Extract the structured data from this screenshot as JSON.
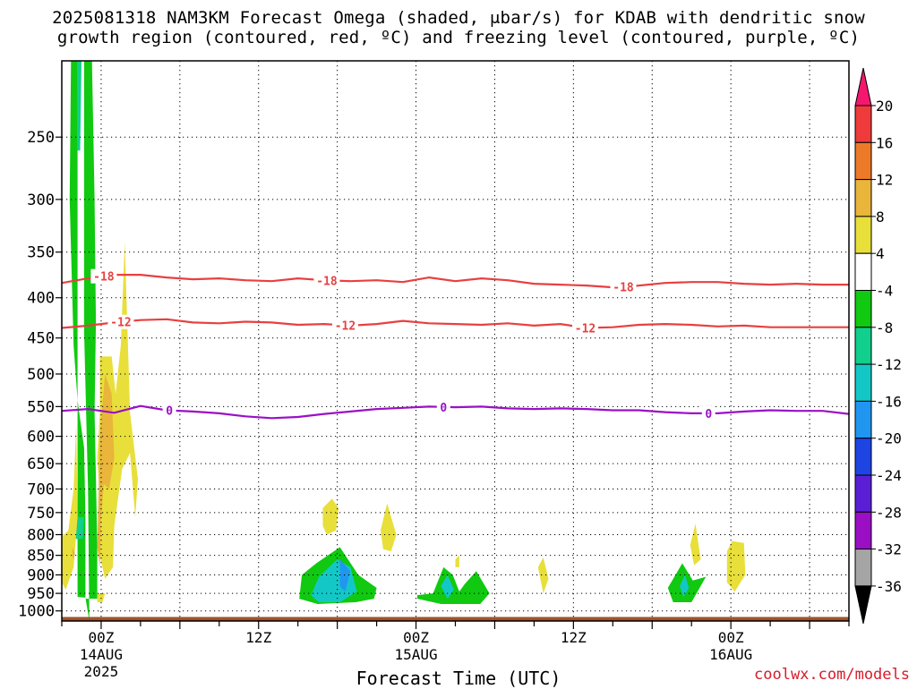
{
  "title_line1": "2025081318 NAM3KM Forecast Omega (shaded, μbar/s) for KDAB with dendritic snow",
  "title_line2": "growth region (contoured, red, ºC) and freezing level (contoured, purple, ºC)",
  "credit": "coolwx.com/models",
  "chart_data": {
    "type": "heatmap",
    "title": "2025081318 NAM3KM Forecast Omega (shaded, μbar/s) for KDAB with dendritic snow growth region (contoured, red, ºC) and freezing level (contoured, purple, ºC)",
    "xlabel": "Forecast Time (UTC)",
    "ylabel": "",
    "x_units": "hours since 2025-08-13 18Z",
    "xlim": [
      3,
      63
    ],
    "ylim": [
      1030,
      200
    ],
    "y_scale": "log (pressure, hPa)",
    "grid": true,
    "y_ticks": [
      250,
      300,
      350,
      400,
      450,
      500,
      550,
      600,
      650,
      700,
      750,
      800,
      850,
      900,
      950,
      1000
    ],
    "x_ticks": [
      {
        "x": 6,
        "label": "00Z",
        "sub1": "14AUG",
        "sub2": "2025"
      },
      {
        "x": 18,
        "label": "12Z",
        "sub1": "",
        "sub2": ""
      },
      {
        "x": 30,
        "label": "00Z",
        "sub1": "15AUG",
        "sub2": ""
      },
      {
        "x": 42,
        "label": "12Z",
        "sub1": "",
        "sub2": ""
      },
      {
        "x": 54,
        "label": "00Z",
        "sub1": "16AUG",
        "sub2": ""
      }
    ],
    "colorbar": {
      "labels": [
        "20",
        "16",
        "12",
        "8",
        "4",
        "-4",
        "-8",
        "-12",
        "-16",
        "-20",
        "-24",
        "-28",
        "-32",
        "-36"
      ],
      "colors": [
        "#f5176e",
        "#ef3b3b",
        "#ec7a28",
        "#e9b53a",
        "#e8df3a",
        "#ffffff",
        "#10c910",
        "#11cf8c",
        "#14c7c7",
        "#2196f0",
        "#1f44e4",
        "#5a1fd4",
        "#9a0fc4",
        "#a5a5a5",
        "#000000"
      ]
    },
    "contours": [
      {
        "name": "-18",
        "color": "#e84040",
        "label_x": [
          6.2,
          23.2,
          45.8
        ],
        "x": [
          3,
          5,
          7,
          9,
          11,
          13,
          15,
          17,
          19,
          21,
          23,
          25,
          27,
          29,
          31,
          33,
          35,
          37,
          39,
          41,
          43,
          45,
          47,
          49,
          51,
          53,
          55,
          57,
          59,
          61,
          63
        ],
        "p": [
          383,
          378,
          374,
          374,
          377,
          379,
          378,
          380,
          381,
          378,
          380,
          381,
          380,
          382,
          377,
          381,
          378,
          380,
          384,
          385,
          386,
          388,
          386,
          383,
          382,
          382,
          384,
          385,
          384,
          385,
          385
        ]
      },
      {
        "name": "-12",
        "color": "#e84040",
        "label_x": [
          7.5,
          24.6,
          42.9
        ],
        "x": [
          3,
          5,
          7,
          9,
          11,
          13,
          15,
          17,
          19,
          21,
          23,
          25,
          27,
          29,
          31,
          33,
          35,
          37,
          39,
          41,
          43,
          45,
          47,
          49,
          51,
          53,
          55,
          57,
          59,
          61,
          63
        ],
        "p": [
          437,
          434,
          430,
          427,
          426,
          430,
          431,
          429,
          430,
          433,
          432,
          434,
          432,
          428,
          431,
          432,
          433,
          431,
          434,
          432,
          437,
          436,
          433,
          432,
          433,
          435,
          434,
          436,
          436,
          436,
          436
        ]
      },
      {
        "name": "0",
        "color": "#9a10c8",
        "label_x": [
          11.2,
          32.1,
          52.3
        ],
        "x": [
          3,
          5,
          7,
          9,
          11,
          13,
          15,
          17,
          19,
          21,
          23,
          25,
          27,
          29,
          31,
          33,
          35,
          37,
          39,
          41,
          43,
          45,
          47,
          49,
          51,
          53,
          55,
          57,
          59,
          61,
          63
        ],
        "p": [
          557,
          554,
          560,
          549,
          556,
          558,
          561,
          566,
          569,
          567,
          562,
          558,
          554,
          552,
          550,
          551,
          550,
          553,
          554,
          553,
          554,
          556,
          556,
          559,
          561,
          561,
          558,
          556,
          557,
          557,
          562
        ]
      }
    ],
    "regions": [
      {
        "name": "upward-motion-band-outer",
        "value": -8,
        "color": "#10c910",
        "pts": [
          [
            5.1,
            1030
          ],
          [
            5.0,
            700
          ],
          [
            4.7,
            440
          ],
          [
            4.7,
            200
          ],
          [
            5.3,
            200
          ],
          [
            5.5,
            300
          ],
          [
            5.6,
            430
          ],
          [
            5.5,
            560
          ],
          [
            5.7,
            820
          ],
          [
            5.7,
            965
          ],
          [
            4.8,
            965
          ],
          [
            4.8,
            760
          ],
          [
            4.7,
            620
          ],
          [
            4.2,
            540
          ],
          [
            3.9,
            460
          ],
          [
            3.6,
            300
          ],
          [
            3.7,
            200
          ],
          [
            4.2,
            200
          ],
          [
            4.2,
            960
          ],
          [
            4.8,
            962
          ]
        ]
      },
      {
        "name": "upward-motion-band-inner",
        "value": -12,
        "color": "#11cf8c",
        "pts": [
          [
            4.2,
            200
          ],
          [
            4.5,
            200
          ],
          [
            4.4,
            260
          ],
          [
            4.2,
            260
          ]
        ]
      },
      {
        "name": "upward-motion-band-lower",
        "value": -12,
        "color": "#11cf8c",
        "pts": [
          [
            4.05,
            760
          ],
          [
            4.7,
            760
          ],
          [
            4.6,
            810
          ],
          [
            4.05,
            810
          ]
        ]
      },
      {
        "name": "sinking-motion-west-edge",
        "value": 4,
        "color": "#e8df3a",
        "pts": [
          [
            3.0,
            805
          ],
          [
            3.5,
            790
          ],
          [
            3.9,
            700
          ],
          [
            4.1,
            580
          ],
          [
            4.2,
            760
          ],
          [
            3.9,
            880
          ],
          [
            3.3,
            940
          ],
          [
            3.0,
            920
          ]
        ]
      },
      {
        "name": "sinking-motion-west-core",
        "value": 8,
        "color": "#e9b53a",
        "pts": [
          [
            3.8,
            830
          ],
          [
            4.0,
            845
          ],
          [
            3.9,
            860
          ],
          [
            3.8,
            850
          ]
        ]
      },
      {
        "name": "sinking-motion-column",
        "value": 4,
        "color": "#e8df3a",
        "pts": [
          [
            5.9,
            475
          ],
          [
            6.8,
            475
          ],
          [
            7.1,
            530
          ],
          [
            7.5,
            460
          ],
          [
            7.8,
            340
          ],
          [
            8.2,
            560
          ],
          [
            8.8,
            680
          ],
          [
            8.6,
            760
          ],
          [
            8.2,
            630
          ],
          [
            7.6,
            660
          ],
          [
            7.0,
            780
          ],
          [
            6.9,
            880
          ],
          [
            6.3,
            910
          ],
          [
            5.9,
            850
          ],
          [
            6.0,
            760
          ],
          [
            5.7,
            640
          ],
          [
            5.9,
            560
          ]
        ]
      },
      {
        "name": "sinking-motion-column-core",
        "value": 8,
        "color": "#e9b53a",
        "pts": [
          [
            5.9,
            600
          ],
          [
            6.3,
            500
          ],
          [
            6.8,
            530
          ],
          [
            7.0,
            640
          ],
          [
            6.6,
            700
          ],
          [
            6.2,
            690
          ],
          [
            6.0,
            760
          ],
          [
            5.9,
            880
          ],
          [
            5.7,
            830
          ]
        ]
      },
      {
        "name": "sinking-motion-speck",
        "value": 4,
        "color": "#e8df3a",
        "pts": [
          [
            5.7,
            950
          ],
          [
            6.3,
            950
          ],
          [
            6.1,
            975
          ],
          [
            5.7,
            975
          ]
        ]
      },
      {
        "name": "upward-motion-cell-15aug",
        "value": -8,
        "color": "#10c910",
        "pts": [
          [
            21.1,
            965
          ],
          [
            21.3,
            900
          ],
          [
            22.4,
            870
          ],
          [
            24.2,
            830
          ],
          [
            25.6,
            900
          ],
          [
            27.0,
            935
          ],
          [
            26.8,
            965
          ],
          [
            25.4,
            975
          ],
          [
            22.5,
            980
          ]
        ]
      },
      {
        "name": "upward-motion-cell-15aug-core",
        "value": -16,
        "color": "#14c7c7",
        "pts": [
          [
            22.0,
            955
          ],
          [
            22.6,
            905
          ],
          [
            24.0,
            860
          ],
          [
            25.0,
            880
          ],
          [
            25.5,
            945
          ],
          [
            24.2,
            975
          ],
          [
            22.6,
            975
          ]
        ]
      },
      {
        "name": "upward-motion-cell-15aug-peak",
        "value": -20,
        "color": "#2196f0",
        "pts": [
          [
            24.2,
            860
          ],
          [
            25.0,
            890
          ],
          [
            24.6,
            945
          ],
          [
            24.2,
            930
          ]
        ]
      },
      {
        "name": "upward-motion-pair",
        "value": -8,
        "color": "#10c910",
        "pts": [
          [
            30.1,
            955
          ],
          [
            31.3,
            950
          ],
          [
            32.1,
            880
          ],
          [
            32.8,
            900
          ],
          [
            33.3,
            945
          ],
          [
            33.7,
            925
          ],
          [
            34.6,
            890
          ],
          [
            35.6,
            950
          ],
          [
            34.9,
            980
          ],
          [
            31.9,
            980
          ],
          [
            30.1,
            965
          ]
        ]
      },
      {
        "name": "upward-motion-pair-core",
        "value": -16,
        "color": "#14c7c7",
        "pts": [
          [
            31.9,
            930
          ],
          [
            32.4,
            900
          ],
          [
            32.9,
            940
          ],
          [
            32.4,
            965
          ]
        ]
      },
      {
        "name": "sinking-motion-15aug-a",
        "value": 4,
        "color": "#e8df3a",
        "pts": [
          [
            22.9,
            740
          ],
          [
            23.6,
            720
          ],
          [
            24.1,
            740
          ],
          [
            23.9,
            790
          ],
          [
            23.2,
            800
          ],
          [
            22.9,
            780
          ]
        ]
      },
      {
        "name": "sinking-motion-15aug-b",
        "value": 4,
        "color": "#e8df3a",
        "pts": [
          [
            27.3,
            790
          ],
          [
            27.8,
            730
          ],
          [
            28.5,
            800
          ],
          [
            28.1,
            840
          ],
          [
            27.5,
            835
          ]
        ]
      },
      {
        "name": "sinking-motion-15aug-c",
        "value": 4,
        "color": "#e8df3a",
        "pts": [
          [
            33.0,
            860
          ],
          [
            33.3,
            850
          ],
          [
            33.3,
            880
          ],
          [
            33.0,
            880
          ]
        ]
      },
      {
        "name": "sinking-motion-15aug-d",
        "value": 4,
        "color": "#e8df3a",
        "pts": [
          [
            39.3,
            880
          ],
          [
            39.7,
            855
          ],
          [
            40.1,
            910
          ],
          [
            39.7,
            950
          ]
        ]
      },
      {
        "name": "upward-motion-16aug",
        "value": -8,
        "color": "#10c910",
        "pts": [
          [
            49.2,
            935
          ],
          [
            50.3,
            870
          ],
          [
            51.1,
            915
          ],
          [
            52.1,
            905
          ],
          [
            51.0,
            975
          ],
          [
            49.6,
            975
          ]
        ]
      },
      {
        "name": "upward-motion-16aug-core",
        "value": -16,
        "color": "#14c7c7",
        "pts": [
          [
            50.1,
            930
          ],
          [
            50.5,
            900
          ],
          [
            50.8,
            935
          ],
          [
            50.4,
            960
          ]
        ]
      },
      {
        "name": "sinking-motion-16aug-a",
        "value": 4,
        "color": "#e8df3a",
        "pts": [
          [
            50.9,
            825
          ],
          [
            51.3,
            775
          ],
          [
            51.7,
            860
          ],
          [
            51.2,
            875
          ]
        ]
      },
      {
        "name": "sinking-motion-16aug-b",
        "value": 4,
        "color": "#e8df3a",
        "pts": [
          [
            53.7,
            840
          ],
          [
            54.1,
            815
          ],
          [
            55.0,
            820
          ],
          [
            55.1,
            900
          ],
          [
            54.3,
            945
          ],
          [
            53.7,
            920
          ]
        ]
      },
      {
        "name": "surface-below-ground",
        "value": 0,
        "color": "#a0522d",
        "pts": [
          [
            3,
            1018
          ],
          [
            63,
            1018
          ],
          [
            63,
            1030
          ],
          [
            3,
            1030
          ]
        ]
      }
    ]
  }
}
